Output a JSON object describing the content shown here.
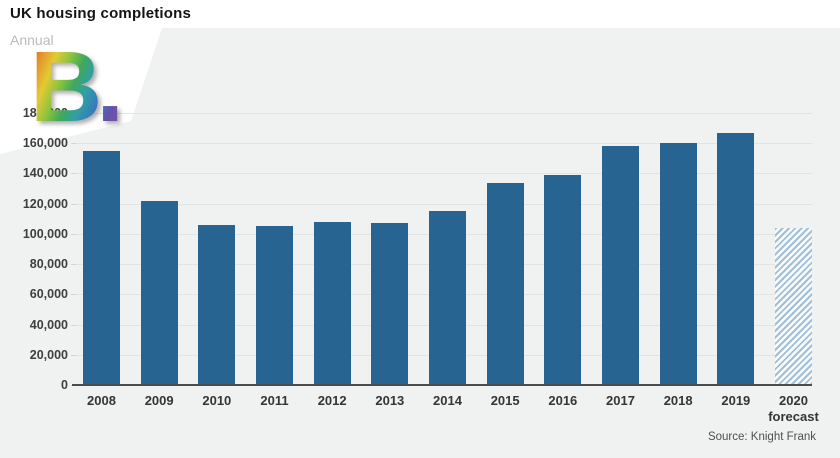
{
  "header": {
    "title": "UK housing completions",
    "subtitle": "Annual",
    "watermark": "B."
  },
  "footer": {
    "source": "Source: Knight Frank"
  },
  "colors": {
    "bar_blue": "#286491",
    "forecast_hatch_blue": "#9fc0d6",
    "panel_background": "#f0f2f1",
    "gridline": "#e2e4e3",
    "axis_line": "#4c4c4c"
  },
  "chart_data": {
    "type": "bar",
    "title": "UK housing completions",
    "subtitle": "Annual",
    "xlabel": "",
    "ylabel": "",
    "ylim": [
      0,
      180000
    ],
    "ytick_step": 20000,
    "ytick_labels": [
      "0",
      "20,000",
      "40,000",
      "60,000",
      "80,000",
      "100,000",
      "120,000",
      "140,000",
      "160,000",
      "180,000"
    ],
    "grid": "horizontal",
    "legend": "none",
    "categories": [
      "2008",
      "2009",
      "2010",
      "2011",
      "2012",
      "2013",
      "2014",
      "2015",
      "2016",
      "2017",
      "2018",
      "2019",
      "2020"
    ],
    "values": [
      155000,
      122000,
      106000,
      105000,
      108000,
      107000,
      115000,
      134000,
      139000,
      158000,
      160000,
      167000,
      104000
    ],
    "forecast_category": "2020",
    "forecast_suffix": "forecast",
    "forecast_style": "hatched",
    "source": "Source: Knight Frank"
  }
}
